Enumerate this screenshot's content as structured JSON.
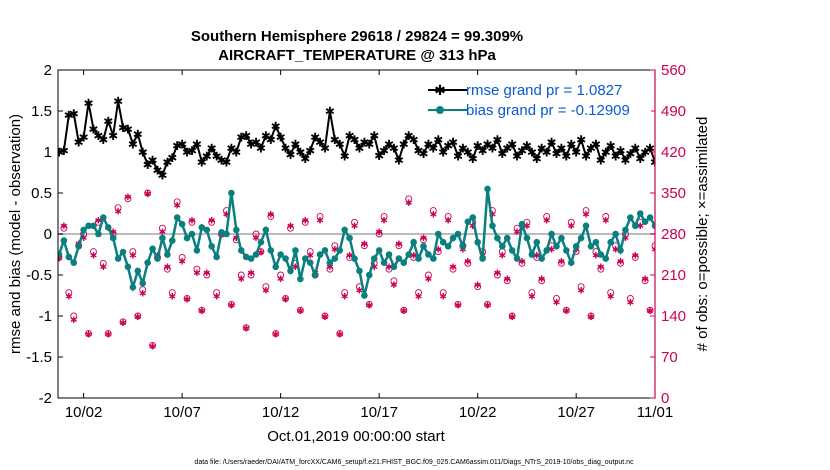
{
  "chart_data": {
    "type": "line",
    "title_line1": "Southern Hemisphere 29618 / 29824 = 99.309%",
    "title_line2": "AIRCRAFT_TEMPERATURE @ 313 hPa",
    "xlabel": "Oct.01,2019 00:00:00 start",
    "ylabel_left": "rmse and bias (model - observation)",
    "ylabel_right": "# of obs: o=possible; ×=assimilated",
    "footnote": "data file: /Users/raeder/DAI/ATM_forcXX/CAM6_setup/f.e21.FHIST_BGC.f09_025.CAM6assim.011/Diags_NTrS_2019-10/obs_diag_output.nc",
    "xlim": [
      0.7,
      31.0
    ],
    "ylim_left": [
      -2,
      2
    ],
    "ylim_right": [
      0,
      560
    ],
    "x_ticks": [
      {
        "value": 2,
        "label": "10/02"
      },
      {
        "value": 7,
        "label": "10/07"
      },
      {
        "value": 12,
        "label": "10/12"
      },
      {
        "value": 17,
        "label": "10/17"
      },
      {
        "value": 22,
        "label": "10/22"
      },
      {
        "value": 27,
        "label": "10/27"
      },
      {
        "value": 32,
        "label": "11/01"
      }
    ],
    "y_ticks_left": [
      {
        "value": -2,
        "label": "-2"
      },
      {
        "value": -1.5,
        "label": "-1.5"
      },
      {
        "value": -1,
        "label": "-1"
      },
      {
        "value": -0.5,
        "label": "-0.5"
      },
      {
        "value": 0,
        "label": "0"
      },
      {
        "value": 0.5,
        "label": "0.5"
      },
      {
        "value": 1,
        "label": "1"
      },
      {
        "value": 1.5,
        "label": "1.5"
      },
      {
        "value": 2,
        "label": "2"
      }
    ],
    "y_ticks_right": [
      {
        "value": 0,
        "label": "0"
      },
      {
        "value": 70,
        "label": "70"
      },
      {
        "value": 140,
        "label": "140"
      },
      {
        "value": 210,
        "label": "210"
      },
      {
        "value": 280,
        "label": "280"
      },
      {
        "value": 350,
        "label": "350"
      },
      {
        "value": 420,
        "label": "420"
      },
      {
        "value": 490,
        "label": "490"
      },
      {
        "value": 560,
        "label": "560"
      }
    ],
    "legend": [
      {
        "name": "rmse grand pr = 1.0827",
        "color": "#000000",
        "text_color": "#0a5ad2",
        "marker": "star"
      },
      {
        "name": "bias grand pr = -0.12909",
        "color": "#0b7f7f",
        "text_color": "#0a5ad2",
        "marker": "circle"
      }
    ],
    "colors": {
      "rmse": "#000000",
      "bias": "#0b7f7f",
      "obs": "#cc0055",
      "zero_line": "#bbbbbb",
      "right_axis": "#cc0055"
    },
    "time_start": 0.75,
    "time_step": 0.25,
    "series": [
      {
        "name": "rmse",
        "axis": "left",
        "values": [
          1.0,
          1.02,
          1.45,
          1.47,
          1.12,
          1.18,
          1.6,
          1.28,
          1.2,
          1.15,
          1.38,
          1.2,
          1.62,
          1.3,
          1.28,
          1.1,
          1.22,
          1.0,
          0.85,
          0.9,
          0.78,
          0.72,
          0.88,
          0.93,
          1.08,
          1.1,
          1.0,
          1.02,
          1.1,
          0.88,
          0.95,
          1.05,
          0.95,
          0.9,
          0.88,
          1.05,
          1.0,
          1.18,
          1.2,
          1.1,
          1.12,
          1.05,
          1.2,
          1.15,
          1.32,
          1.18,
          1.05,
          0.97,
          1.1,
          1.0,
          0.92,
          1.02,
          1.18,
          1.12,
          1.05,
          1.5,
          1.15,
          1.1,
          0.95,
          1.2,
          1.15,
          1.05,
          1.12,
          1.1,
          1.2,
          0.96,
          1.02,
          1.1,
          1.05,
          0.9,
          1.1,
          1.2,
          1.15,
          1.02,
          0.98,
          1.1,
          1.05,
          1.15,
          1.0,
          1.08,
          1.12,
          0.95,
          1.05,
          1.0,
          0.92,
          1.08,
          1.02,
          1.1,
          1.05,
          1.15,
          0.98,
          1.05,
          1.1,
          0.95,
          1.02,
          1.08,
          1.0,
          0.92,
          1.05,
          1.0,
          1.12,
          0.98,
          1.05,
          0.95,
          1.1,
          1.0,
          1.15,
          0.95,
          1.05,
          1.1,
          0.9,
          1.0,
          1.08,
          0.95,
          1.02,
          0.9,
          0.98,
          1.05,
          0.92,
          1.0,
          1.05,
          0.88,
          0.98,
          1.02
        ]
      },
      {
        "name": "bias",
        "axis": "left",
        "values": [
          -0.25,
          -0.08,
          -0.28,
          -0.35,
          -0.15,
          0.05,
          0.1,
          0.1,
          0.0,
          0.2,
          0.08,
          -0.05,
          -0.3,
          -0.22,
          -0.4,
          -0.65,
          -0.45,
          -0.6,
          -0.35,
          -0.18,
          -0.3,
          -0.05,
          -0.25,
          -0.08,
          0.2,
          0.12,
          -0.05,
          0.0,
          -0.2,
          0.08,
          0.05,
          -0.15,
          -0.28,
          0.02,
          0.0,
          0.5,
          0.05,
          -0.2,
          -0.28,
          -0.3,
          -0.25,
          -0.1,
          0.05,
          -0.2,
          -0.4,
          -0.25,
          -0.3,
          -0.45,
          -0.2,
          -0.55,
          -0.3,
          -0.35,
          -0.5,
          -0.25,
          -0.2,
          -0.35,
          -0.3,
          -0.2,
          0.05,
          -0.05,
          -0.3,
          -0.45,
          -0.75,
          -0.5,
          -0.3,
          -0.2,
          -0.35,
          -0.25,
          -0.4,
          -0.3,
          -0.35,
          -0.25,
          -0.1,
          -0.3,
          -0.15,
          -0.25,
          -0.3,
          0.0,
          -0.1,
          -0.15,
          -0.05,
          0.0,
          -0.15,
          0.15,
          0.2,
          -0.1,
          -0.3,
          0.55,
          0.1,
          -0.05,
          -0.15,
          -0.05,
          -0.2,
          -0.3,
          0.12,
          -0.05,
          -0.25,
          -0.1,
          -0.3,
          -0.2,
          0.0,
          -0.15,
          -0.05,
          -0.2,
          -0.35,
          -0.15,
          -0.05,
          0.1,
          -0.15,
          -0.1,
          -0.25,
          -0.3,
          -0.1,
          0.0,
          -0.2,
          0.05,
          0.2,
          0.1,
          0.25,
          0.15,
          0.2,
          0.1,
          0.2,
          0.1,
          0.05,
          -0.45
        ]
      },
      {
        "name": "obs_possible",
        "axis": "right",
        "values": [
          240,
          290,
          180,
          140,
          260,
          280,
          110,
          250,
          300,
          230,
          110,
          280,
          325,
          130,
          340,
          250,
          140,
          185,
          350,
          90,
          240,
          290,
          220,
          180,
          335,
          240,
          170,
          300,
          220,
          150,
          210,
          300,
          180,
          280,
          320,
          160,
          270,
          210,
          120,
          210,
          280,
          250,
          190,
          310,
          110,
          210,
          170,
          290,
          230,
          150,
          300,
          250,
          210,
          310,
          140,
          220,
          260,
          110,
          180,
          240,
          300,
          190,
          260,
          160,
          230,
          280,
          310,
          220,
          200,
          260,
          150,
          340,
          240,
          180,
          270,
          210,
          320,
          250,
          180,
          310,
          220,
          160,
          260,
          230,
          300,
          190,
          250,
          160,
          320,
          210,
          250,
          200,
          140,
          290,
          230,
          300,
          180,
          240,
          200,
          310,
          260,
          170,
          230,
          150,
          300,
          250,
          190,
          320,
          140,
          250,
          220,
          310,
          180,
          260,
          230,
          280,
          170,
          240,
          300,
          200,
          150,
          260,
          330,
          200,
          190,
          170
        ]
      },
      {
        "name": "obs_assimilated",
        "axis": "right",
        "values": [
          240,
          295,
          175,
          135,
          265,
          275,
          110,
          245,
          305,
          225,
          110,
          285,
          320,
          130,
          345,
          245,
          140,
          180,
          350,
          90,
          245,
          285,
          225,
          175,
          330,
          235,
          170,
          305,
          215,
          150,
          215,
          305,
          175,
          280,
          315,
          160,
          275,
          205,
          120,
          215,
          275,
          250,
          185,
          315,
          110,
          205,
          170,
          295,
          225,
          150,
          305,
          245,
          215,
          305,
          140,
          225,
          255,
          110,
          175,
          245,
          295,
          185,
          265,
          160,
          225,
          285,
          305,
          225,
          195,
          265,
          150,
          335,
          245,
          175,
          275,
          205,
          315,
          255,
          175,
          305,
          225,
          160,
          255,
          235,
          295,
          195,
          245,
          160,
          315,
          215,
          245,
          205,
          140,
          285,
          235,
          295,
          175,
          245,
          205,
          305,
          255,
          165,
          235,
          150,
          295,
          255,
          185,
          315,
          140,
          245,
          225,
          305,
          175,
          255,
          235,
          275,
          165,
          245,
          295,
          205,
          150,
          255,
          325,
          205,
          185,
          170
        ]
      }
    ]
  }
}
